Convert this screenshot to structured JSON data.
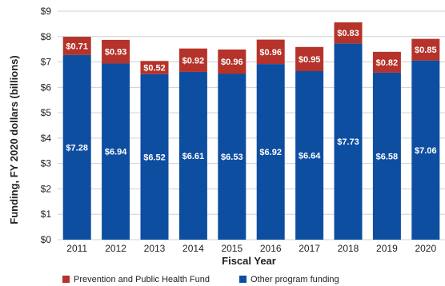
{
  "chart_data": {
    "type": "bar",
    "stacked": true,
    "categories": [
      "2011",
      "2012",
      "2013",
      "2014",
      "2015",
      "2016",
      "2017",
      "2018",
      "2019",
      "2020"
    ],
    "series": [
      {
        "name": "Other program funding",
        "color": "#0e4ea1",
        "values": [
          7.28,
          6.94,
          6.52,
          6.61,
          6.53,
          6.92,
          6.64,
          7.73,
          6.58,
          7.06
        ],
        "labels": [
          "$7.28",
          "$6.94",
          "$6.52",
          "$6.61",
          "$6.53",
          "$6.92",
          "$6.64",
          "$7.73",
          "$6.58",
          "$7.06"
        ]
      },
      {
        "name": "Prevention and Public Health Fund",
        "color": "#b5332a",
        "values": [
          0.71,
          0.93,
          0.52,
          0.92,
          0.96,
          0.96,
          0.95,
          0.83,
          0.82,
          0.85
        ],
        "labels": [
          "$0.71",
          "$0.93",
          "$0.52",
          "$0.92",
          "$0.96",
          "$0.96",
          "$0.95",
          "$0.83",
          "$0.82",
          "$0.85"
        ]
      }
    ],
    "xlabel": "Fiscal Year",
    "ylabel": "Funding, FY 2020 dollars (billions)",
    "ylim": [
      0,
      9
    ],
    "yticks": [
      "$0",
      "$1",
      "$2",
      "$3",
      "$4",
      "$5",
      "$6",
      "$7",
      "$8",
      "$9"
    ],
    "grid": true,
    "legend": "bottom"
  }
}
